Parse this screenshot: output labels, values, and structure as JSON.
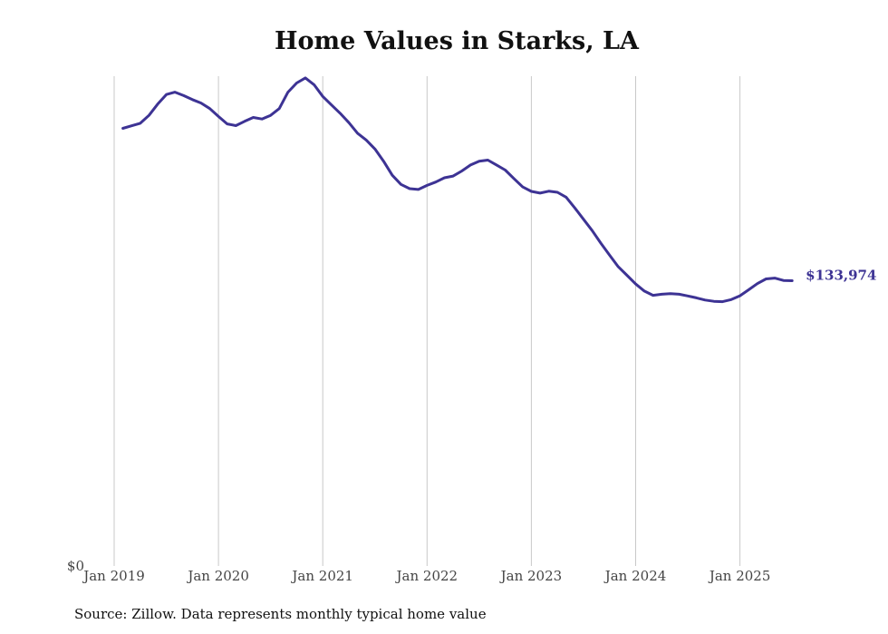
{
  "chart_data": {
    "type": "line",
    "title": "Home Values in Starks, LA",
    "xlabel": "",
    "ylabel": "",
    "x_ticks": [
      "Jan 2019",
      "Jan 2020",
      "Jan 2021",
      "Jan 2022",
      "Jan 2023",
      "Jan 2024",
      "Jan 2025"
    ],
    "y_ticks": [
      "$0"
    ],
    "ylim": [
      0,
      230000
    ],
    "grid": "vertical",
    "line_color": "#3d3394",
    "end_label": "$133,974",
    "series": [
      {
        "name": "Typical home value",
        "x": [
          2019.0833,
          2019.1667,
          2019.25,
          2019.3333,
          2019.4167,
          2019.5,
          2019.5833,
          2019.6667,
          2019.75,
          2019.8333,
          2019.9167,
          2020.0,
          2020.0833,
          2020.1667,
          2020.25,
          2020.3333,
          2020.4167,
          2020.5,
          2020.5833,
          2020.6667,
          2020.75,
          2020.8333,
          2020.9167,
          2021.0,
          2021.0833,
          2021.1667,
          2021.25,
          2021.3333,
          2021.4167,
          2021.5,
          2021.5833,
          2021.6667,
          2021.75,
          2021.8333,
          2021.9167,
          2022.0,
          2022.0833,
          2022.1667,
          2022.25,
          2022.3333,
          2022.4167,
          2022.5,
          2022.5833,
          2022.6667,
          2022.75,
          2022.8333,
          2022.9167,
          2023.0,
          2023.0833,
          2023.1667,
          2023.25,
          2023.3333,
          2023.4167,
          2023.5,
          2023.5833,
          2023.6667,
          2023.75,
          2023.8333,
          2023.9167,
          2024.0,
          2024.0833,
          2024.1667,
          2024.25,
          2024.3333,
          2024.4167,
          2024.5,
          2024.5833,
          2024.6667,
          2024.75,
          2024.8333,
          2024.9167,
          2025.0,
          2025.0833,
          2025.1667,
          2025.25,
          2025.3333,
          2025.4167,
          2025.5
        ],
        "values": [
          205500,
          206700,
          207900,
          211600,
          216900,
          221400,
          222500,
          220900,
          219000,
          217400,
          214800,
          211100,
          207600,
          206800,
          208800,
          210600,
          209900,
          211600,
          214800,
          222500,
          226800,
          229200,
          226000,
          220500,
          216500,
          212600,
          208200,
          203200,
          200000,
          195800,
          190100,
          183500,
          179200,
          177200,
          176800,
          178700,
          180300,
          182300,
          183100,
          185500,
          188300,
          190100,
          190600,
          188300,
          185900,
          181900,
          178000,
          175900,
          175100,
          176000,
          175500,
          173200,
          168100,
          162800,
          157500,
          151600,
          146000,
          140500,
          136500,
          132400,
          129100,
          127100,
          127600,
          127900,
          127600,
          126800,
          125900,
          124900,
          124300,
          124100,
          125100,
          126900,
          129700,
          132600,
          134800,
          135200,
          134100,
          133974
        ]
      }
    ]
  },
  "footer": {
    "source": "Source: Zillow. Data represents monthly typical home value"
  }
}
